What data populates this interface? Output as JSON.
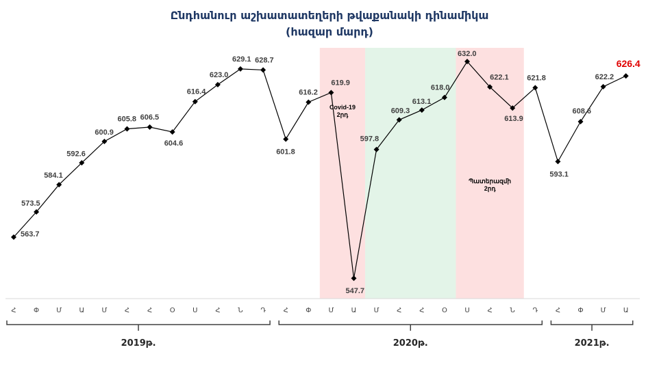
{
  "chart_data": {
    "type": "line",
    "title": "Ընդհանուր աշխատատեղերի թվաքանակի դինամիկա",
    "subtitle": "(հազար մարդ)",
    "x": [
      "Հ",
      "Փ",
      "Մ",
      "Ա",
      "Մ",
      "Հ",
      "Հ",
      "Օ",
      "Ս",
      "Հ",
      "Ն",
      "Դ",
      "Հ",
      "Փ",
      "Մ",
      "Ա",
      "Մ",
      "Հ",
      "Հ",
      "Օ",
      "Ս",
      "Հ",
      "Ն",
      "Դ",
      "Հ",
      "Փ",
      "Մ",
      "Ա"
    ],
    "values": [
      563.7,
      573.5,
      584.1,
      592.6,
      600.9,
      605.8,
      606.5,
      604.6,
      616.4,
      623.0,
      629.1,
      628.7,
      601.8,
      616.2,
      619.9,
      547.7,
      597.8,
      609.3,
      613.1,
      618.0,
      632.0,
      622.1,
      613.9,
      621.8,
      593.1,
      608.6,
      622.2,
      626.4
    ],
    "value_labels": [
      "563.7",
      "573.5",
      "584.1",
      "592.6",
      "600.9",
      "605.8",
      "606.5",
      "604.6",
      "616.4",
      "623.0",
      "629.1",
      "628.7",
      "601.8",
      "616.2",
      "619.9",
      "547.7",
      "597.8",
      "609.3",
      "613.1",
      "618.0",
      "632.0",
      "622.1",
      "613.9",
      "621.8",
      "593.1",
      "608.6",
      "622.2",
      "626.4"
    ],
    "years": [
      {
        "label": "2019թ.",
        "start": 0,
        "end": 11
      },
      {
        "label": "2020թ.",
        "start": 12,
        "end": 23
      },
      {
        "label": "2021թ.",
        "start": 24,
        "end": 27
      }
    ],
    "bands": [
      {
        "start": 14,
        "end": 15,
        "color": "#fde0e0",
        "label": [
          "Covid-19",
          "2րդ"
        ]
      },
      {
        "start": 16,
        "end": 19,
        "color": "#e3f4e8"
      },
      {
        "start": 20,
        "end": 22,
        "color": "#fde0e0",
        "label": [
          "Պատերազմի",
          "2րդ"
        ]
      }
    ],
    "highlight_last_color": "#e00000",
    "line_color": "#000000",
    "ylim": [
      540,
      640
    ],
    "grid": false,
    "legend": "none"
  }
}
